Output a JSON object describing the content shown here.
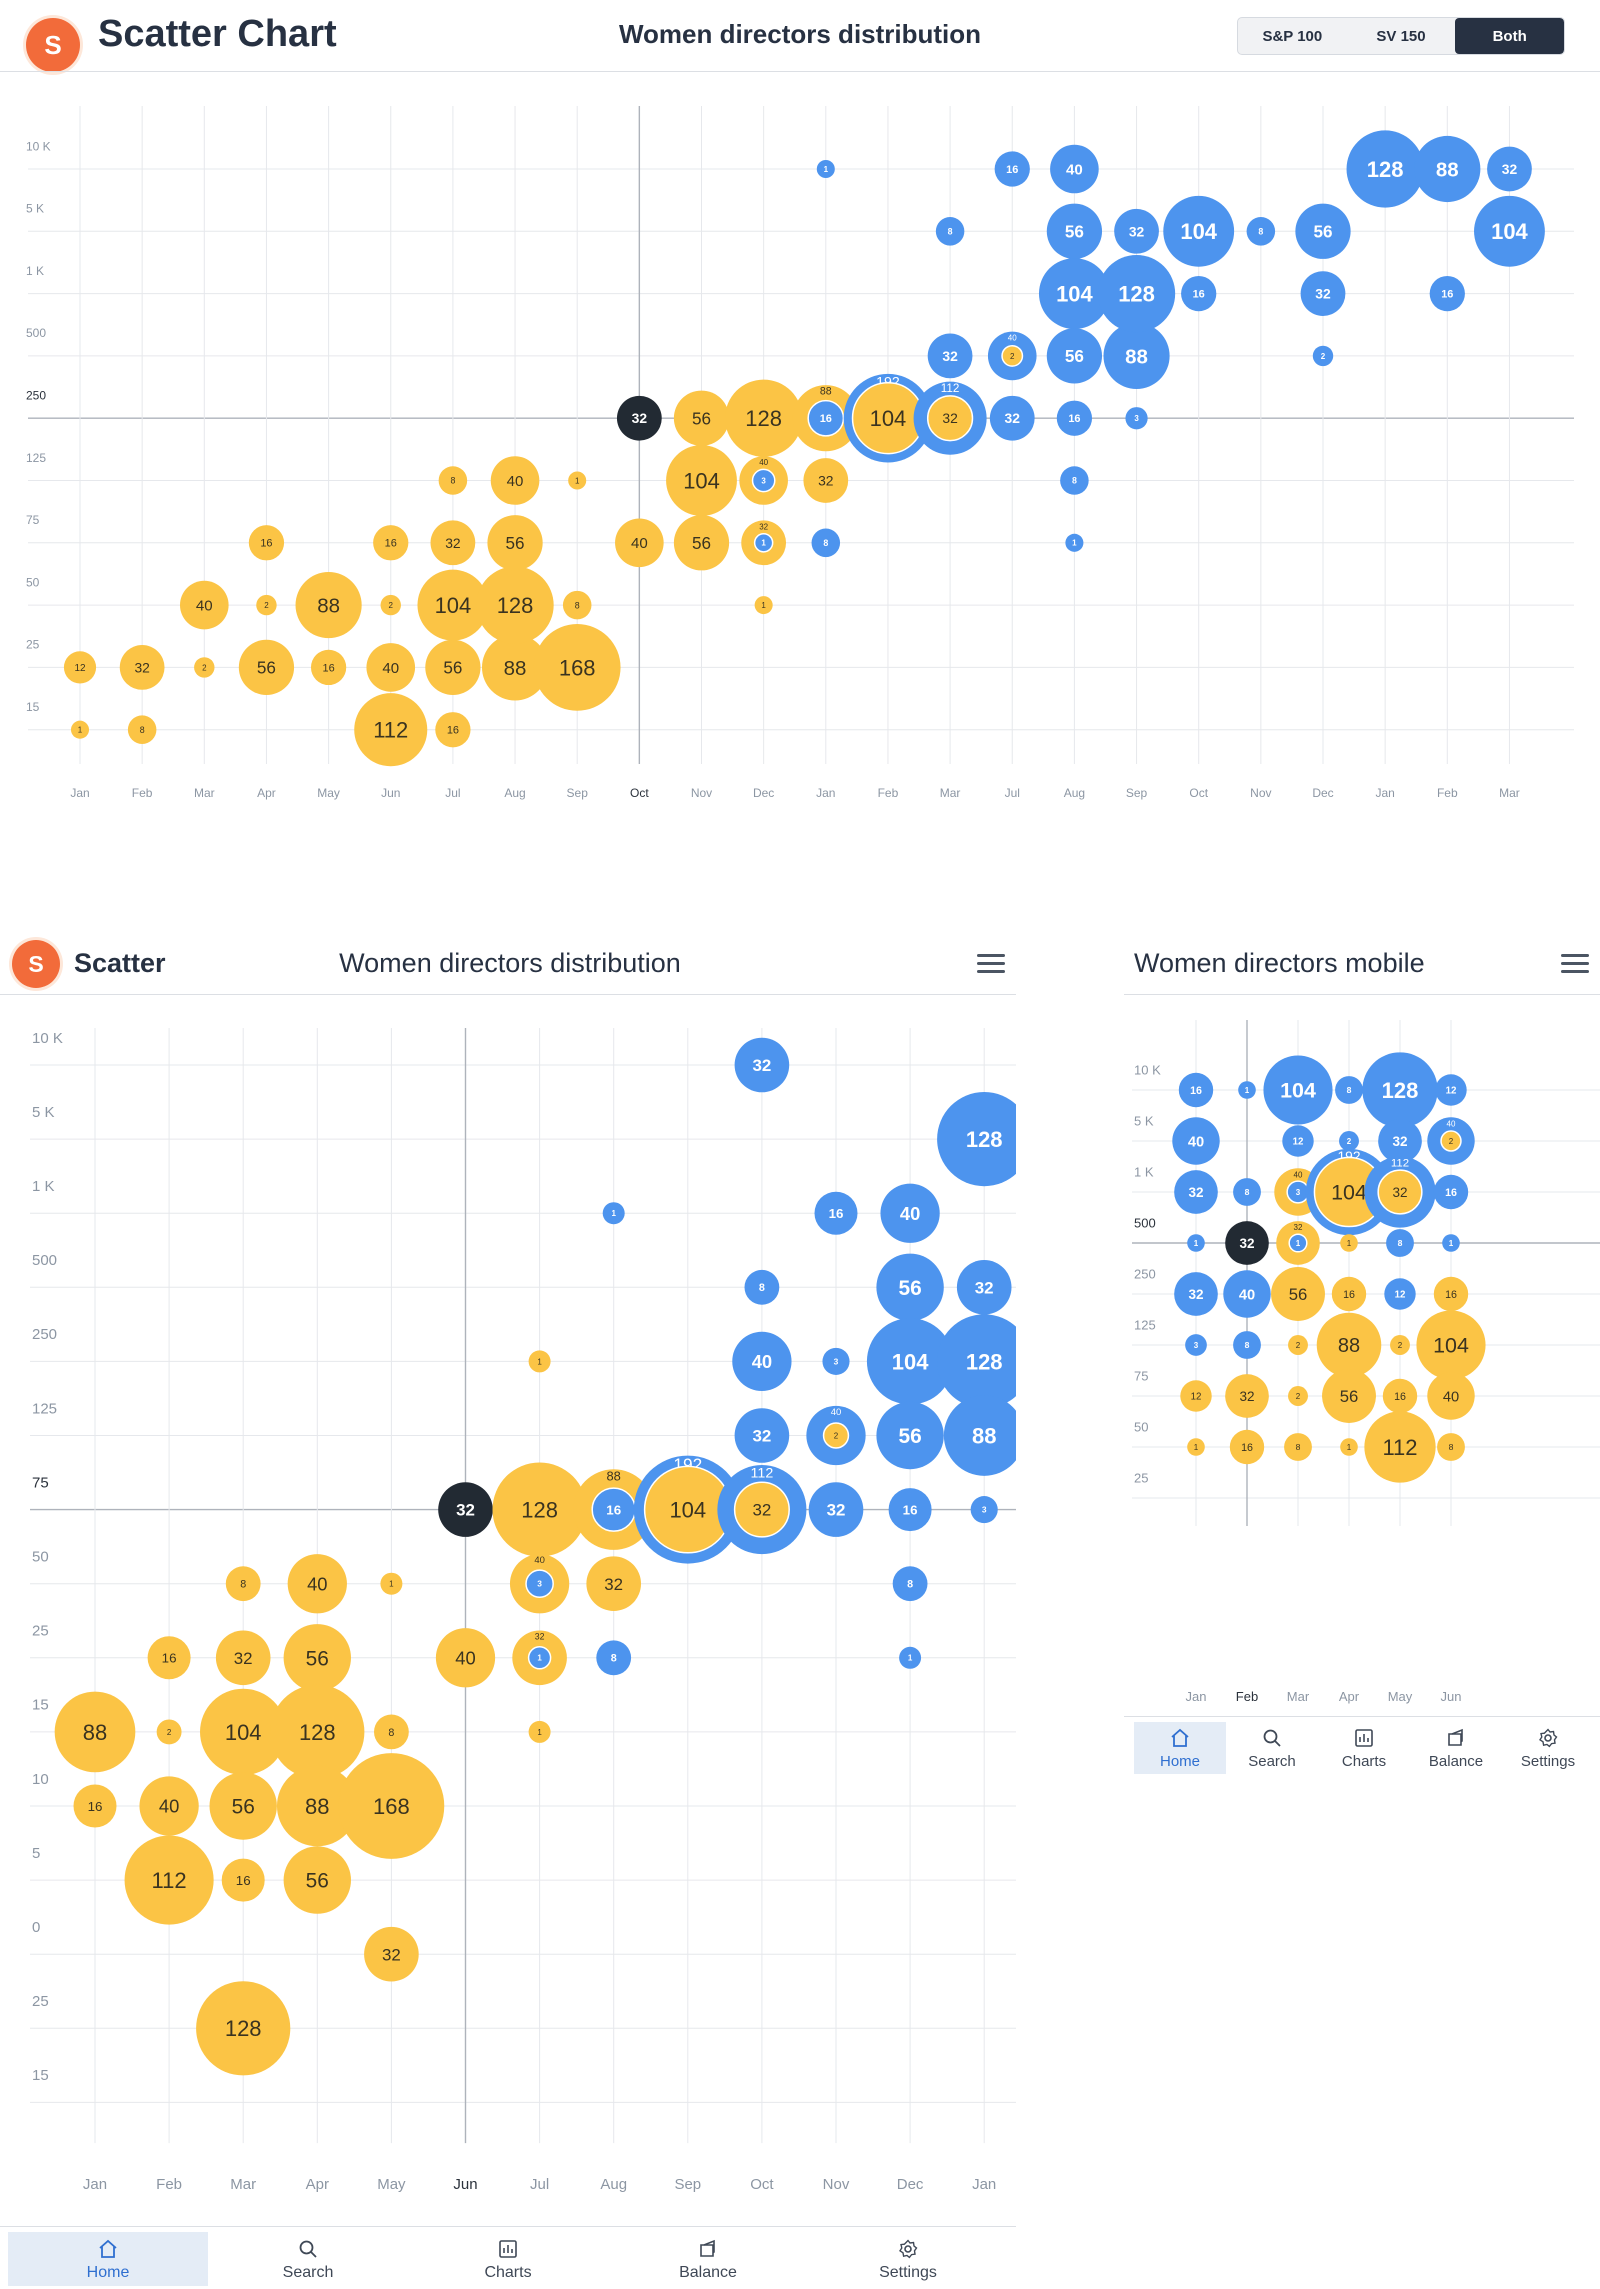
{
  "header": {
    "logo_letter": "S",
    "app_title": "Scatter Chart",
    "chart_title": "Women directors distribution",
    "segments": [
      "S&P 100",
      "SV 150",
      "Both"
    ],
    "active_segment": "Both"
  },
  "tablet_header": {
    "logo_letter": "S",
    "app_title": "Scatter",
    "chart_title": "Women directors distribution"
  },
  "mobile_header": {
    "chart_title": "Women directors mobile"
  },
  "nav": {
    "tabs": [
      {
        "label": "Home",
        "icon": "home-icon"
      },
      {
        "label": "Search",
        "icon": "search-icon"
      },
      {
        "label": "Charts",
        "icon": "charts-icon"
      },
      {
        "label": "Balance",
        "icon": "balance-icon"
      },
      {
        "label": "Settings",
        "icon": "settings-icon"
      }
    ],
    "active": "Home"
  },
  "colors": {
    "yellow": "#fbc445",
    "yellow_text": "#3a3320",
    "blue": "#4d94ee",
    "blue_text": "#ffffff",
    "highlight": "#222a33",
    "tick_text": "#8c96a3"
  },
  "chart_data": [
    {
      "type": "scatter",
      "name": "desktop",
      "x_labels": [
        "Jan",
        "Feb",
        "Mar",
        "Apr",
        "May",
        "Jun",
        "Jul",
        "Aug",
        "Sep",
        "Oct",
        "Nov",
        "Dec",
        "Jan",
        "Feb",
        "Mar",
        "Jul",
        "Aug",
        "Sep",
        "Oct",
        "Nov",
        "Dec",
        "Jan",
        "Feb",
        "Mar"
      ],
      "y_labels": [
        "10 K",
        "5 K",
        "1 K",
        "500",
        "250",
        "125",
        "75",
        "50",
        "25",
        "15"
      ],
      "highlight_x": 9,
      "highlight_y": 4,
      "grid": true,
      "points": [
        [
          0,
          9,
          "1",
          "y"
        ],
        [
          1,
          9,
          "8",
          "y"
        ],
        [
          5,
          9,
          "112",
          "y"
        ],
        [
          6,
          9,
          "16",
          "y"
        ],
        [
          0,
          8,
          "12",
          "y"
        ],
        [
          1,
          8,
          "32",
          "y"
        ],
        [
          2,
          8,
          "2",
          "y"
        ],
        [
          3,
          8,
          "56",
          "y"
        ],
        [
          4,
          8,
          "16",
          "y"
        ],
        [
          5,
          8,
          "40",
          "y"
        ],
        [
          6,
          8,
          "56",
          "y"
        ],
        [
          7,
          8,
          "88",
          "y"
        ],
        [
          8,
          8,
          "168",
          "y"
        ],
        [
          2,
          7,
          "40",
          "y"
        ],
        [
          3,
          7,
          "2",
          "y"
        ],
        [
          4,
          7,
          "88",
          "y"
        ],
        [
          5,
          7,
          "2",
          "y"
        ],
        [
          6,
          7,
          "104",
          "y"
        ],
        [
          7,
          7,
          "128",
          "y"
        ],
        [
          8,
          7,
          "8",
          "y"
        ],
        [
          11,
          7,
          "1",
          "y"
        ],
        [
          3,
          6,
          "16",
          "y"
        ],
        [
          5,
          6,
          "16",
          "y"
        ],
        [
          6,
          6,
          "32",
          "y"
        ],
        [
          7,
          6,
          "56",
          "y"
        ],
        [
          9,
          6,
          "40",
          "y"
        ],
        [
          10,
          6,
          "56",
          "y"
        ],
        [
          11,
          6,
          "1",
          "b",
          "32",
          "y"
        ],
        [
          12,
          6,
          "8",
          "b"
        ],
        [
          16,
          6,
          "1",
          "b"
        ],
        [
          6,
          5,
          "8",
          "y"
        ],
        [
          7,
          5,
          "40",
          "y"
        ],
        [
          8,
          5,
          "1",
          "y"
        ],
        [
          10,
          5,
          "104",
          "y"
        ],
        [
          11,
          5,
          "3",
          "b",
          "40",
          "y"
        ],
        [
          12,
          5,
          "32",
          "y"
        ],
        [
          16,
          5,
          "8",
          "b"
        ],
        [
          9,
          4,
          "32",
          "h"
        ],
        [
          10,
          4,
          "56",
          "y"
        ],
        [
          11,
          4,
          "128",
          "y"
        ],
        [
          12,
          4,
          "16",
          "b",
          "88",
          "y"
        ],
        [
          13,
          4,
          "104",
          "y",
          "192",
          "b"
        ],
        [
          14,
          4,
          "32",
          "y",
          "112",
          "b"
        ],
        [
          15,
          4,
          "32",
          "b"
        ],
        [
          16,
          4,
          "16",
          "b"
        ],
        [
          17,
          4,
          "3",
          "b"
        ],
        [
          14,
          3,
          "32",
          "b"
        ],
        [
          15,
          3,
          "2",
          "y",
          "40",
          "b"
        ],
        [
          16,
          3,
          "56",
          "b"
        ],
        [
          17,
          3,
          "88",
          "b"
        ],
        [
          20,
          3,
          "2",
          "b"
        ],
        [
          16,
          2,
          "104",
          "b"
        ],
        [
          17,
          2,
          "128",
          "b"
        ],
        [
          18,
          2,
          "16",
          "b"
        ],
        [
          20,
          2,
          "32",
          "b"
        ],
        [
          22,
          2,
          "16",
          "b"
        ],
        [
          14,
          1,
          "8",
          "b"
        ],
        [
          16,
          1,
          "56",
          "b"
        ],
        [
          17,
          1,
          "32",
          "b"
        ],
        [
          18,
          1,
          "104",
          "b"
        ],
        [
          19,
          1,
          "8",
          "b"
        ],
        [
          20,
          1,
          "56",
          "b"
        ],
        [
          23,
          1,
          "104",
          "b"
        ],
        [
          12,
          0,
          "1",
          "b"
        ],
        [
          15,
          0,
          "16",
          "b"
        ],
        [
          16,
          0,
          "40",
          "b"
        ],
        [
          21,
          0,
          "128",
          "b"
        ],
        [
          22,
          0,
          "88",
          "b"
        ],
        [
          23,
          0,
          "32",
          "b"
        ]
      ]
    },
    {
      "type": "scatter",
      "name": "tablet",
      "x_labels": [
        "Jan",
        "Feb",
        "Mar",
        "Apr",
        "May",
        "Jun",
        "Jul",
        "Aug",
        "Sep",
        "Oct",
        "Nov",
        "Dec",
        "Jan"
      ],
      "y_labels": [
        "10 K",
        "5 K",
        "1 K",
        "500",
        "250",
        "125",
        "75",
        "50",
        "25",
        "15",
        "10",
        "5",
        "0",
        "25",
        "15"
      ],
      "highlight_x": 5,
      "highlight_y": 6,
      "grid": true,
      "points": [
        [
          9,
          0,
          "32",
          "b"
        ],
        [
          12,
          1,
          "128",
          "b"
        ],
        [
          7,
          2,
          "1",
          "b"
        ],
        [
          10,
          2,
          "16",
          "b"
        ],
        [
          11,
          2,
          "40",
          "b"
        ],
        [
          9,
          3,
          "8",
          "b"
        ],
        [
          11,
          3,
          "56",
          "b"
        ],
        [
          12,
          3,
          "32",
          "b"
        ],
        [
          6,
          4,
          "1",
          "y"
        ],
        [
          9,
          4,
          "40",
          "b"
        ],
        [
          10,
          4,
          "3",
          "b"
        ],
        [
          11,
          4,
          "104",
          "b"
        ],
        [
          12,
          4,
          "128",
          "b"
        ],
        [
          9,
          5,
          "32",
          "b"
        ],
        [
          10,
          5,
          "2",
          "y",
          "40",
          "b"
        ],
        [
          11,
          5,
          "56",
          "b"
        ],
        [
          12,
          5,
          "88",
          "b"
        ],
        [
          5,
          6,
          "32",
          "h"
        ],
        [
          6,
          6,
          "128",
          "y"
        ],
        [
          7,
          6,
          "16",
          "b",
          "88",
          "y"
        ],
        [
          8,
          6,
          "104",
          "y",
          "192",
          "b"
        ],
        [
          9,
          6,
          "32",
          "y",
          "112",
          "b"
        ],
        [
          10,
          6,
          "32",
          "b"
        ],
        [
          11,
          6,
          "16",
          "b"
        ],
        [
          12,
          6,
          "3",
          "b"
        ],
        [
          2,
          7,
          "8",
          "y"
        ],
        [
          3,
          7,
          "40",
          "y"
        ],
        [
          4,
          7,
          "1",
          "y"
        ],
        [
          6,
          7,
          "3",
          "b",
          "40",
          "y"
        ],
        [
          7,
          7,
          "32",
          "y"
        ],
        [
          11,
          7,
          "8",
          "b"
        ],
        [
          1,
          8,
          "16",
          "y"
        ],
        [
          2,
          8,
          "32",
          "y"
        ],
        [
          3,
          8,
          "56",
          "y"
        ],
        [
          5,
          8,
          "40",
          "y"
        ],
        [
          6,
          8,
          "1",
          "b",
          "32",
          "y"
        ],
        [
          7,
          8,
          "8",
          "b"
        ],
        [
          11,
          8,
          "1",
          "b"
        ],
        [
          0,
          9,
          "88",
          "y"
        ],
        [
          1,
          9,
          "2",
          "y"
        ],
        [
          2,
          9,
          "104",
          "y"
        ],
        [
          3,
          9,
          "128",
          "y"
        ],
        [
          4,
          9,
          "8",
          "y"
        ],
        [
          6,
          9,
          "1",
          "y"
        ],
        [
          0,
          10,
          "16",
          "y"
        ],
        [
          1,
          10,
          "40",
          "y"
        ],
        [
          2,
          10,
          "56",
          "y"
        ],
        [
          3,
          10,
          "88",
          "y"
        ],
        [
          4,
          10,
          "168",
          "y"
        ],
        [
          1,
          11,
          "112",
          "y"
        ],
        [
          2,
          11,
          "16",
          "y"
        ],
        [
          3,
          11,
          "56",
          "y"
        ],
        [
          4,
          12,
          "32",
          "y"
        ],
        [
          2,
          13,
          "128",
          "y"
        ]
      ]
    },
    {
      "type": "scatter",
      "name": "mobile",
      "x_labels": [
        "Jan",
        "Feb",
        "Mar",
        "Apr",
        "May",
        "Jun"
      ],
      "y_labels": [
        "10 K",
        "5 K",
        "1 K",
        "500",
        "250",
        "125",
        "75",
        "50",
        "25"
      ],
      "highlight_x": 1,
      "highlight_y": 3,
      "grid": true,
      "points": [
        [
          0,
          0,
          "16",
          "b"
        ],
        [
          1,
          0,
          "1",
          "b"
        ],
        [
          2,
          0,
          "104",
          "b"
        ],
        [
          3,
          0,
          "8",
          "b"
        ],
        [
          4,
          0,
          "128",
          "b"
        ],
        [
          5,
          0,
          "12",
          "b"
        ],
        [
          0,
          1,
          "40",
          "b"
        ],
        [
          2,
          1,
          "12",
          "b"
        ],
        [
          3,
          1,
          "2",
          "b"
        ],
        [
          4,
          1,
          "32",
          "b"
        ],
        [
          5,
          1,
          "2",
          "y",
          "40",
          "b"
        ],
        [
          0,
          2,
          "32",
          "b"
        ],
        [
          1,
          2,
          "8",
          "b"
        ],
        [
          2,
          2,
          "3",
          "b",
          "40",
          "y"
        ],
        [
          3,
          2,
          "104",
          "y",
          "192",
          "b"
        ],
        [
          4,
          2,
          "32",
          "y",
          "112",
          "b"
        ],
        [
          5,
          2,
          "16",
          "b"
        ],
        [
          0,
          3,
          "1",
          "b"
        ],
        [
          1,
          3,
          "32",
          "h"
        ],
        [
          2,
          3,
          "1",
          "b",
          "32",
          "y"
        ],
        [
          3,
          3,
          "1",
          "y"
        ],
        [
          4,
          3,
          "8",
          "b"
        ],
        [
          5,
          3,
          "1",
          "b"
        ],
        [
          0,
          4,
          "32",
          "b"
        ],
        [
          1,
          4,
          "40",
          "b"
        ],
        [
          2,
          4,
          "56",
          "y"
        ],
        [
          3,
          4,
          "16",
          "y"
        ],
        [
          4,
          4,
          "12",
          "b"
        ],
        [
          5,
          4,
          "16",
          "y"
        ],
        [
          0,
          5,
          "3",
          "b"
        ],
        [
          1,
          5,
          "8",
          "b"
        ],
        [
          2,
          5,
          "2",
          "y"
        ],
        [
          3,
          5,
          "88",
          "y"
        ],
        [
          4,
          5,
          "2",
          "y"
        ],
        [
          5,
          5,
          "104",
          "y"
        ],
        [
          0,
          6,
          "12",
          "y"
        ],
        [
          1,
          6,
          "32",
          "y"
        ],
        [
          2,
          6,
          "2",
          "y"
        ],
        [
          3,
          6,
          "56",
          "y"
        ],
        [
          4,
          6,
          "16",
          "y"
        ],
        [
          5,
          6,
          "40",
          "y"
        ],
        [
          0,
          7,
          "1",
          "y"
        ],
        [
          1,
          7,
          "16",
          "y"
        ],
        [
          2,
          7,
          "8",
          "y"
        ],
        [
          3,
          7,
          "1",
          "y"
        ],
        [
          4,
          7,
          "112",
          "y"
        ],
        [
          5,
          7,
          "8",
          "y"
        ]
      ]
    }
  ]
}
